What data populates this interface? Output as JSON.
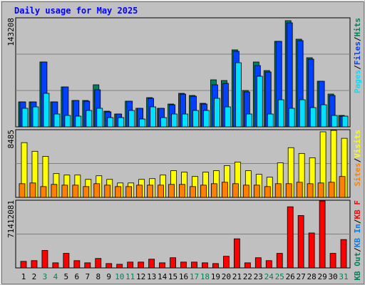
{
  "title": "Daily usage for May 2025",
  "legend_separator": "/",
  "highlight_color": "#00805c",
  "highlighted_categories": [
    "3",
    "4",
    "10",
    "11",
    "17",
    "18",
    "24",
    "25",
    "31"
  ],
  "chart_data": [
    {
      "type": "bar",
      "categories": [
        "1",
        "2",
        "3",
        "4",
        "5",
        "6",
        "7",
        "8",
        "9",
        "10",
        "11",
        "12",
        "13",
        "14",
        "15",
        "16",
        "17",
        "18",
        "19",
        "20",
        "21",
        "22",
        "23",
        "24",
        "25",
        "26",
        "27",
        "28",
        "29",
        "30",
        "31"
      ],
      "ylim": [
        0,
        143208
      ],
      "yticks": [
        143208
      ],
      "series": [
        {
          "name": "Hits",
          "color": "#00805c",
          "values": [
            32760,
            32760,
            85176,
            32760,
            52416,
            34632,
            34632,
            55224,
            20592,
            16848,
            33696,
            24336,
            38376,
            24336,
            29952,
            43992,
            41184,
            30888,
            61776,
            60840,
            101088,
            47736,
            85176,
            73944,
            112320,
            139464,
            115128,
            90792,
            59904,
            43056,
            14976
          ]
        },
        {
          "name": "Files",
          "color": "#0040ff",
          "values": [
            32760,
            32760,
            85176,
            32760,
            52416,
            34632,
            33696,
            48672,
            19656,
            16848,
            33696,
            24336,
            37440,
            24336,
            29016,
            43056,
            40248,
            29952,
            55224,
            57096,
            99216,
            45864,
            80496,
            72072,
            112320,
            136656,
            113256,
            88920,
            59904,
            41184,
            14040
          ]
        },
        {
          "name": "Pages",
          "color": "#00e0ff",
          "values": [
            24336,
            26208,
            43992,
            16848,
            14976,
            14040,
            21528,
            24336,
            12168,
            12168,
            21528,
            10296,
            26208,
            12168,
            16848,
            16848,
            21528,
            21528,
            37440,
            26208,
            84240,
            16848,
            66456,
            16848,
            35568,
            24336,
            35568,
            25272,
            29016,
            14976,
            14040
          ]
        }
      ]
    },
    {
      "type": "bar",
      "ylim": [
        0,
        8485
      ],
      "yticks": [
        8485
      ],
      "series": [
        {
          "name": "Visits",
          "color": "#ffff00",
          "values": [
            6861,
            5777,
            5145,
            2979,
            2798,
            2798,
            2257,
            2708,
            2257,
            1805,
            1805,
            2257,
            2347,
            2798,
            3340,
            3159,
            2618,
            3159,
            3340,
            3972,
            4423,
            3340,
            2889,
            2528,
            4333,
            6229,
            5506,
            4965,
            8215,
            8395,
            7402
          ]
        },
        {
          "name": "Sites",
          "color": "#ff8000",
          "values": [
            1715,
            1805,
            1354,
            1625,
            1535,
            1535,
            1354,
            1715,
            1535,
            1354,
            1354,
            1535,
            1535,
            1535,
            1625,
            1625,
            1354,
            1535,
            1715,
            1896,
            1715,
            1535,
            1535,
            1354,
            1715,
            1715,
            1896,
            1715,
            1805,
            1896,
            2618
          ]
        }
      ]
    },
    {
      "type": "bar",
      "ylim": [
        0,
        71412081
      ],
      "yticks": [
        71412081
      ],
      "series": [
        {
          "name": "KB F",
          "color": "#ff0000",
          "values": [
            6910848,
            7678720,
            18428928,
            5375104,
            15357440,
            7678720,
            5375104,
            9982336,
            4607232,
            3839360,
            6142976,
            6142976,
            9214464,
            5375104,
            10750208,
            6142976,
            6142976,
            5375104,
            4607232,
            12285952,
            30714880,
            5375104,
            10750208,
            7678720,
            15357440,
            64501248,
            55286784,
            36857856,
            70644224,
            15357440,
            29947008
          ]
        },
        {
          "name": "KB In",
          "color": "#0080ff"
        },
        {
          "name": "KB Out",
          "color": "#00805c"
        }
      ]
    }
  ]
}
